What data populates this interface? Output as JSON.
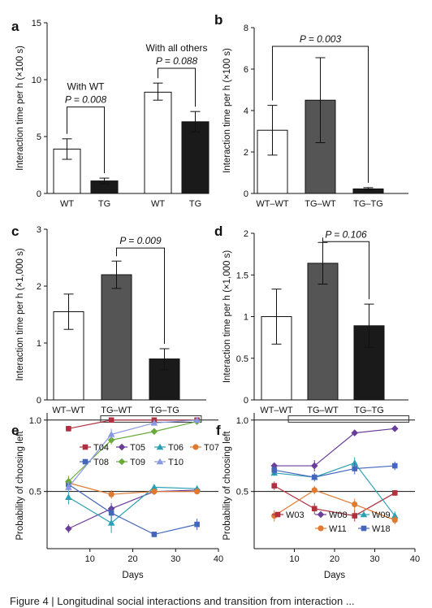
{
  "caption": "Figure 4 | Longitudinal social interactions and transition from interaction ...",
  "chart_data": [
    {
      "panel": "a",
      "type": "bar",
      "ylabel": "Interaction time per h (×100 s)",
      "ylim": [
        0,
        15
      ],
      "yticks": [
        0,
        5,
        10,
        15
      ],
      "bars": [
        {
          "label": "WT",
          "value": 3.9,
          "err": [
            3.0,
            4.8
          ],
          "fill": "#ffffff"
        },
        {
          "label": "TG",
          "value": 1.1,
          "err": [
            0.85,
            1.35
          ],
          "fill": "#1a1a1a"
        },
        {
          "label": "WT",
          "value": 8.9,
          "err": [
            8.2,
            9.7
          ],
          "fill": "#ffffff"
        },
        {
          "label": "TG",
          "value": 6.3,
          "err": [
            5.4,
            7.2
          ],
          "fill": "#1a1a1a"
        }
      ],
      "groups": [
        {
          "label": "With WT",
          "from": 0,
          "to": 1
        },
        {
          "label": "With all others",
          "from": 2,
          "to": 3
        }
      ],
      "annotations": [
        {
          "text": "P = 0.008",
          "from": 0,
          "to": 1,
          "y": 7.6
        },
        {
          "text": "P = 0.088",
          "from": 2,
          "to": 3,
          "y": 11.0
        }
      ]
    },
    {
      "panel": "b",
      "type": "bar",
      "ylabel": "Interaction time per h (×100 s)",
      "ylim": [
        0,
        8
      ],
      "yticks": [
        0,
        2,
        4,
        6,
        8
      ],
      "bars": [
        {
          "label": "WT–WT",
          "value": 3.05,
          "err": [
            1.85,
            4.25
          ],
          "fill": "#ffffff"
        },
        {
          "label": "TG–WT",
          "value": 4.5,
          "err": [
            2.45,
            6.55
          ],
          "fill": "#555555"
        },
        {
          "label": "TG–TG",
          "value": 0.22,
          "err": [
            0.17,
            0.28
          ],
          "fill": "#1a1a1a"
        }
      ],
      "annotations": [
        {
          "text": "P = 0.003",
          "from": 0,
          "to": 2,
          "y": 7.1
        }
      ]
    },
    {
      "panel": "c",
      "type": "bar",
      "ylabel": "Interaction time per h (×1,000 s)",
      "ylim": [
        0,
        3
      ],
      "yticks": [
        0,
        1,
        2,
        3
      ],
      "bars": [
        {
          "label": "WT–WT",
          "value": 1.55,
          "err": [
            1.24,
            1.86
          ],
          "fill": "#ffffff"
        },
        {
          "label": "TG–WT",
          "value": 2.2,
          "err": [
            1.96,
            2.44
          ],
          "fill": "#555555"
        },
        {
          "label": "TG–TG",
          "value": 0.72,
          "err": [
            0.53,
            0.9
          ],
          "fill": "#1a1a1a"
        }
      ],
      "annotations": [
        {
          "text": "P = 0.009",
          "from": 1,
          "to": 2,
          "y": 2.67
        }
      ]
    },
    {
      "panel": "d",
      "type": "bar",
      "ylabel": "Interaction time per h (×1,000 s)",
      "ylim": [
        0,
        2
      ],
      "yticks": [
        0,
        0.5,
        1,
        1.5,
        2
      ],
      "bars": [
        {
          "label": "WT–WT",
          "value": 1.0,
          "err": [
            0.67,
            1.33
          ],
          "fill": "#ffffff"
        },
        {
          "label": "TG–WT",
          "value": 1.64,
          "err": [
            1.39,
            1.89
          ],
          "fill": "#555555"
        },
        {
          "label": "TG–TG",
          "value": 0.89,
          "err": [
            0.63,
            1.15
          ],
          "fill": "#1a1a1a"
        }
      ],
      "annotations": [
        {
          "text": "P = 0.106",
          "from": 1,
          "to": 2,
          "y": 1.9
        }
      ]
    },
    {
      "panel": "e",
      "type": "line",
      "xlabel": "Days",
      "ylabel": "Probability of choosing left",
      "xlim": [
        0,
        40
      ],
      "ylim": [
        0.1,
        1.05
      ],
      "xticks": [
        10,
        20,
        30,
        40
      ],
      "yticks": [
        0.5,
        1.0
      ],
      "hlines": [
        0.5,
        1.0
      ],
      "box": {
        "x": [
          12.5,
          36
        ],
        "y": [
          0.985,
          1.03
        ]
      },
      "x": [
        5,
        15,
        25,
        35
      ],
      "series": [
        {
          "name": "T04",
          "color": "#b03040",
          "marker": "square",
          "values": [
            0.94,
            1.0,
            1.0,
            1.0
          ],
          "err": [
            0.02,
            0.01,
            0.0,
            0.0
          ]
        },
        {
          "name": "T05",
          "color": "#6a3d9a",
          "marker": "diamond",
          "values": [
            0.24,
            0.38,
            0.5,
            0.51
          ],
          "err": [
            0.03,
            0.04,
            0.02,
            0.02
          ]
        },
        {
          "name": "T06",
          "color": "#2aa0b4",
          "marker": "triangle",
          "values": [
            0.46,
            0.28,
            0.53,
            0.52
          ],
          "err": [
            0.05,
            0.07,
            0.02,
            0.02
          ]
        },
        {
          "name": "T07",
          "color": "#e07a30",
          "marker": "circle",
          "values": [
            0.56,
            0.48,
            0.5,
            0.5
          ],
          "err": [
            0.04,
            0.03,
            0.02,
            0.02
          ]
        },
        {
          "name": "T08",
          "color": "#4466bb",
          "marker": "square",
          "values": [
            0.55,
            0.35,
            0.2,
            0.27
          ],
          "err": [
            0.04,
            0.05,
            0.02,
            0.04
          ]
        },
        {
          "name": "T09",
          "color": "#6aaa3a",
          "marker": "diamond",
          "values": [
            0.57,
            0.86,
            0.92,
            0.99
          ],
          "err": [
            0.04,
            0.03,
            0.02,
            0.01
          ]
        },
        {
          "name": "T10",
          "color": "#8899e0",
          "marker": "triangle",
          "values": [
            0.53,
            0.9,
            0.98,
            1.0
          ],
          "err": [
            0.04,
            0.04,
            0.01,
            0.0
          ]
        }
      ],
      "legend_placement": "middle-right"
    },
    {
      "panel": "f",
      "type": "line",
      "xlabel": "Days",
      "ylabel": "Probability of choosing left",
      "xlim": [
        0,
        40
      ],
      "ylim": [
        0.1,
        1.05
      ],
      "xticks": [
        10,
        20,
        30,
        40
      ],
      "yticks": [
        0.5,
        1.0
      ],
      "hlines": [
        0.5,
        1.0
      ],
      "box": {
        "x": [
          8.5,
          38.5
        ],
        "y": [
          0.985,
          1.03
        ]
      },
      "x": [
        5,
        15,
        25,
        35
      ],
      "series": [
        {
          "name": "W03",
          "color": "#b03040",
          "marker": "square",
          "values": [
            0.54,
            0.38,
            0.33,
            0.49
          ],
          "err": [
            0.03,
            0.04,
            0.04,
            0.02
          ]
        },
        {
          "name": "W08",
          "color": "#6a3d9a",
          "marker": "diamond",
          "values": [
            0.68,
            0.68,
            0.91,
            0.94
          ],
          "err": [
            0.02,
            0.04,
            0.02,
            0.01
          ]
        },
        {
          "name": "W09",
          "color": "#2aa0b4",
          "marker": "triangle",
          "values": [
            0.63,
            0.6,
            0.7,
            0.33
          ],
          "err": [
            0.02,
            0.02,
            0.04,
            0.03
          ]
        },
        {
          "name": "W11",
          "color": "#e07a30",
          "marker": "circle",
          "values": [
            0.33,
            0.51,
            0.41,
            0.3
          ],
          "err": [
            0.04,
            0.03,
            0.04,
            0.03
          ]
        },
        {
          "name": "W18",
          "color": "#4466bb",
          "marker": "square",
          "values": [
            0.65,
            0.6,
            0.66,
            0.68
          ],
          "err": [
            0.03,
            0.03,
            0.04,
            0.03
          ]
        }
      ],
      "legend_placement": "bottom-right"
    }
  ]
}
